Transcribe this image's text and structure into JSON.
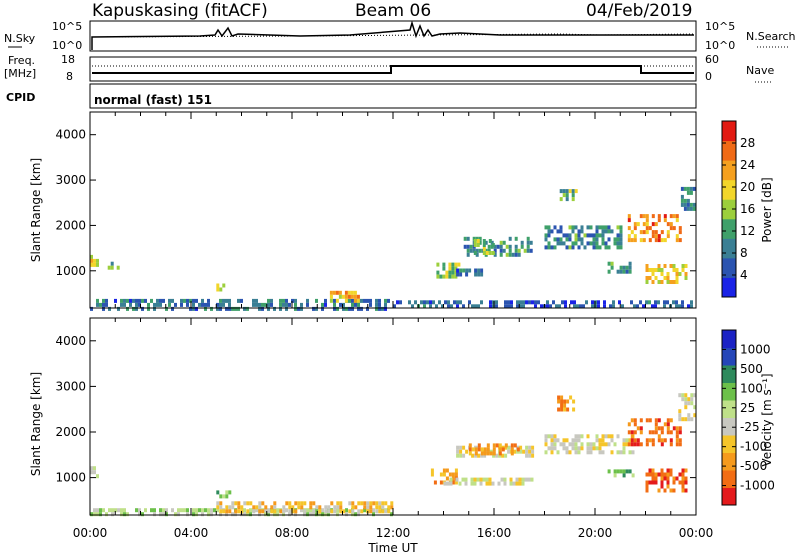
{
  "header": {
    "station": "Kapuskasing (fitACF)",
    "beam": "Beam 06",
    "date": "04/Feb/2019"
  },
  "summary_panels": {
    "nsky_label": "N.Sky",
    "nsky_ticks": [
      "10^5",
      "10^0"
    ],
    "nsearch_label": "N.Search",
    "nsearch_ticks": [
      "10^5",
      "10^0"
    ],
    "freq_label_1": "Freq.",
    "freq_label_2": "[MHz]",
    "freq_ticks": [
      "18",
      "8"
    ],
    "nave_label": "Nave",
    "nave_ticks": [
      "60",
      "0"
    ],
    "cpid_label": "CPID",
    "cpid_text": "normal (fast) 151"
  },
  "colors": {
    "power": [
      "#1a23e6",
      "#2b54b0",
      "#3a7f94",
      "#3fa06a",
      "#9ccf3c",
      "#f2d62a",
      "#f5a01e",
      "#f06a16",
      "#e21a12"
    ],
    "velocity": [
      "#e41a1c",
      "#f26d14",
      "#f59a1c",
      "#f5c52a",
      "#c8c8c0",
      "#bfe089",
      "#6cc04a",
      "#2e8a5c",
      "#2546b8",
      "#1b22c4"
    ]
  },
  "chart_data": [
    {
      "type": "heatmap",
      "title": "",
      "xlabel": "",
      "ylabel": "Slant Range [km]",
      "ylim": [
        180,
        4500
      ],
      "xlim": [
        0,
        24
      ],
      "y_ticks": [
        "4000",
        "3000",
        "2000",
        "1000"
      ],
      "y_tick_values": [
        4000,
        3000,
        2000,
        1000
      ],
      "colorbar_label": "Power [dB]",
      "colorbar_ticks": [
        "28",
        "24",
        "20",
        "16",
        "12",
        "8",
        "4"
      ],
      "colorbar_range": [
        0,
        32
      ],
      "regions": [
        {
          "t0": 0.0,
          "t1": 0.3,
          "r0": 1100,
          "r1": 1350,
          "v": 18
        },
        {
          "t0": 0.7,
          "t1": 1.1,
          "r0": 1080,
          "r1": 1200,
          "v": 12
        },
        {
          "t0": 0.0,
          "t1": 12.0,
          "r0": 200,
          "r1": 380,
          "v": 8
        },
        {
          "t0": 5.0,
          "t1": 5.5,
          "r0": 600,
          "r1": 720,
          "v": 20
        },
        {
          "t0": 9.5,
          "t1": 10.8,
          "r0": 340,
          "r1": 560,
          "v": 22
        },
        {
          "t0": 12.0,
          "t1": 24.0,
          "r0": 200,
          "r1": 350,
          "v": 6
        },
        {
          "t0": 13.6,
          "t1": 14.6,
          "r0": 880,
          "r1": 1180,
          "v": 16
        },
        {
          "t0": 14.5,
          "t1": 15.6,
          "r0": 900,
          "r1": 1050,
          "v": 8
        },
        {
          "t0": 14.8,
          "t1": 17.5,
          "r0": 1350,
          "r1": 1750,
          "v": 10
        },
        {
          "t0": 15.2,
          "t1": 16.0,
          "r0": 1400,
          "r1": 1700,
          "v": 16
        },
        {
          "t0": 18.6,
          "t1": 19.2,
          "r0": 2550,
          "r1": 2800,
          "v": 14
        },
        {
          "t0": 18.0,
          "t1": 21.0,
          "r0": 1500,
          "r1": 2000,
          "v": 10
        },
        {
          "t0": 20.5,
          "t1": 21.5,
          "r0": 1020,
          "r1": 1200,
          "v": 12
        },
        {
          "t0": 21.3,
          "t1": 23.4,
          "r0": 1700,
          "r1": 2250,
          "v": 24
        },
        {
          "t0": 22.0,
          "t1": 23.6,
          "r0": 750,
          "r1": 1150,
          "v": 20
        },
        {
          "t0": 23.4,
          "t1": 23.9,
          "r0": 2350,
          "r1": 2850,
          "v": 8
        }
      ]
    },
    {
      "type": "heatmap",
      "title": "",
      "xlabel": "Time UT",
      "ylabel": "Slant Range [km]",
      "ylim": [
        180,
        4500
      ],
      "xlim": [
        0,
        24
      ],
      "x_ticks": [
        "00:00",
        "04:00",
        "08:00",
        "12:00",
        "16:00",
        "20:00",
        "00:00"
      ],
      "x_tick_values": [
        0,
        4,
        8,
        12,
        16,
        20,
        24
      ],
      "y_ticks": [
        "4000",
        "3000",
        "2000",
        "1000"
      ],
      "y_tick_values": [
        4000,
        3000,
        2000,
        1000
      ],
      "colorbar_label": "Velocity [m s⁻¹]",
      "colorbar_ticks": [
        "1000",
        "500",
        "100",
        "25",
        "-25",
        "-100",
        "-500",
        "-1000"
      ],
      "regions": [
        {
          "t0": 0.0,
          "t1": 0.3,
          "r0": 1050,
          "r1": 1250,
          "c": 4
        },
        {
          "t0": 0.0,
          "t1": 12.0,
          "r0": 200,
          "r1": 330,
          "c": 5
        },
        {
          "t0": 5.0,
          "t1": 12.0,
          "r0": 250,
          "r1": 480,
          "c": 3
        },
        {
          "t0": 5.0,
          "t1": 5.5,
          "r0": 600,
          "r1": 720,
          "c": 6
        },
        {
          "t0": 13.5,
          "t1": 14.6,
          "r0": 900,
          "r1": 1200,
          "c": 2
        },
        {
          "t0": 14.0,
          "t1": 17.5,
          "r0": 900,
          "r1": 1000,
          "c": 4
        },
        {
          "t0": 14.5,
          "t1": 17.5,
          "r0": 1450,
          "r1": 1700,
          "c": 4
        },
        {
          "t0": 15.0,
          "t1": 17.0,
          "r0": 1550,
          "r1": 1750,
          "c": 2
        },
        {
          "t0": 18.5,
          "t1": 19.2,
          "r0": 2450,
          "r1": 2800,
          "c": 2
        },
        {
          "t0": 18.0,
          "t1": 21.5,
          "r0": 1550,
          "r1": 1950,
          "c": 4
        },
        {
          "t0": 21.3,
          "t1": 23.4,
          "r0": 1700,
          "r1": 2300,
          "c": 1
        },
        {
          "t0": 20.5,
          "t1": 21.5,
          "r0": 1020,
          "r1": 1180,
          "c": 6
        },
        {
          "t0": 22.0,
          "t1": 23.6,
          "r0": 700,
          "r1": 1200,
          "c": 1
        },
        {
          "t0": 23.3,
          "t1": 23.9,
          "r0": 2300,
          "r1": 2850,
          "c": 4
        }
      ]
    }
  ]
}
